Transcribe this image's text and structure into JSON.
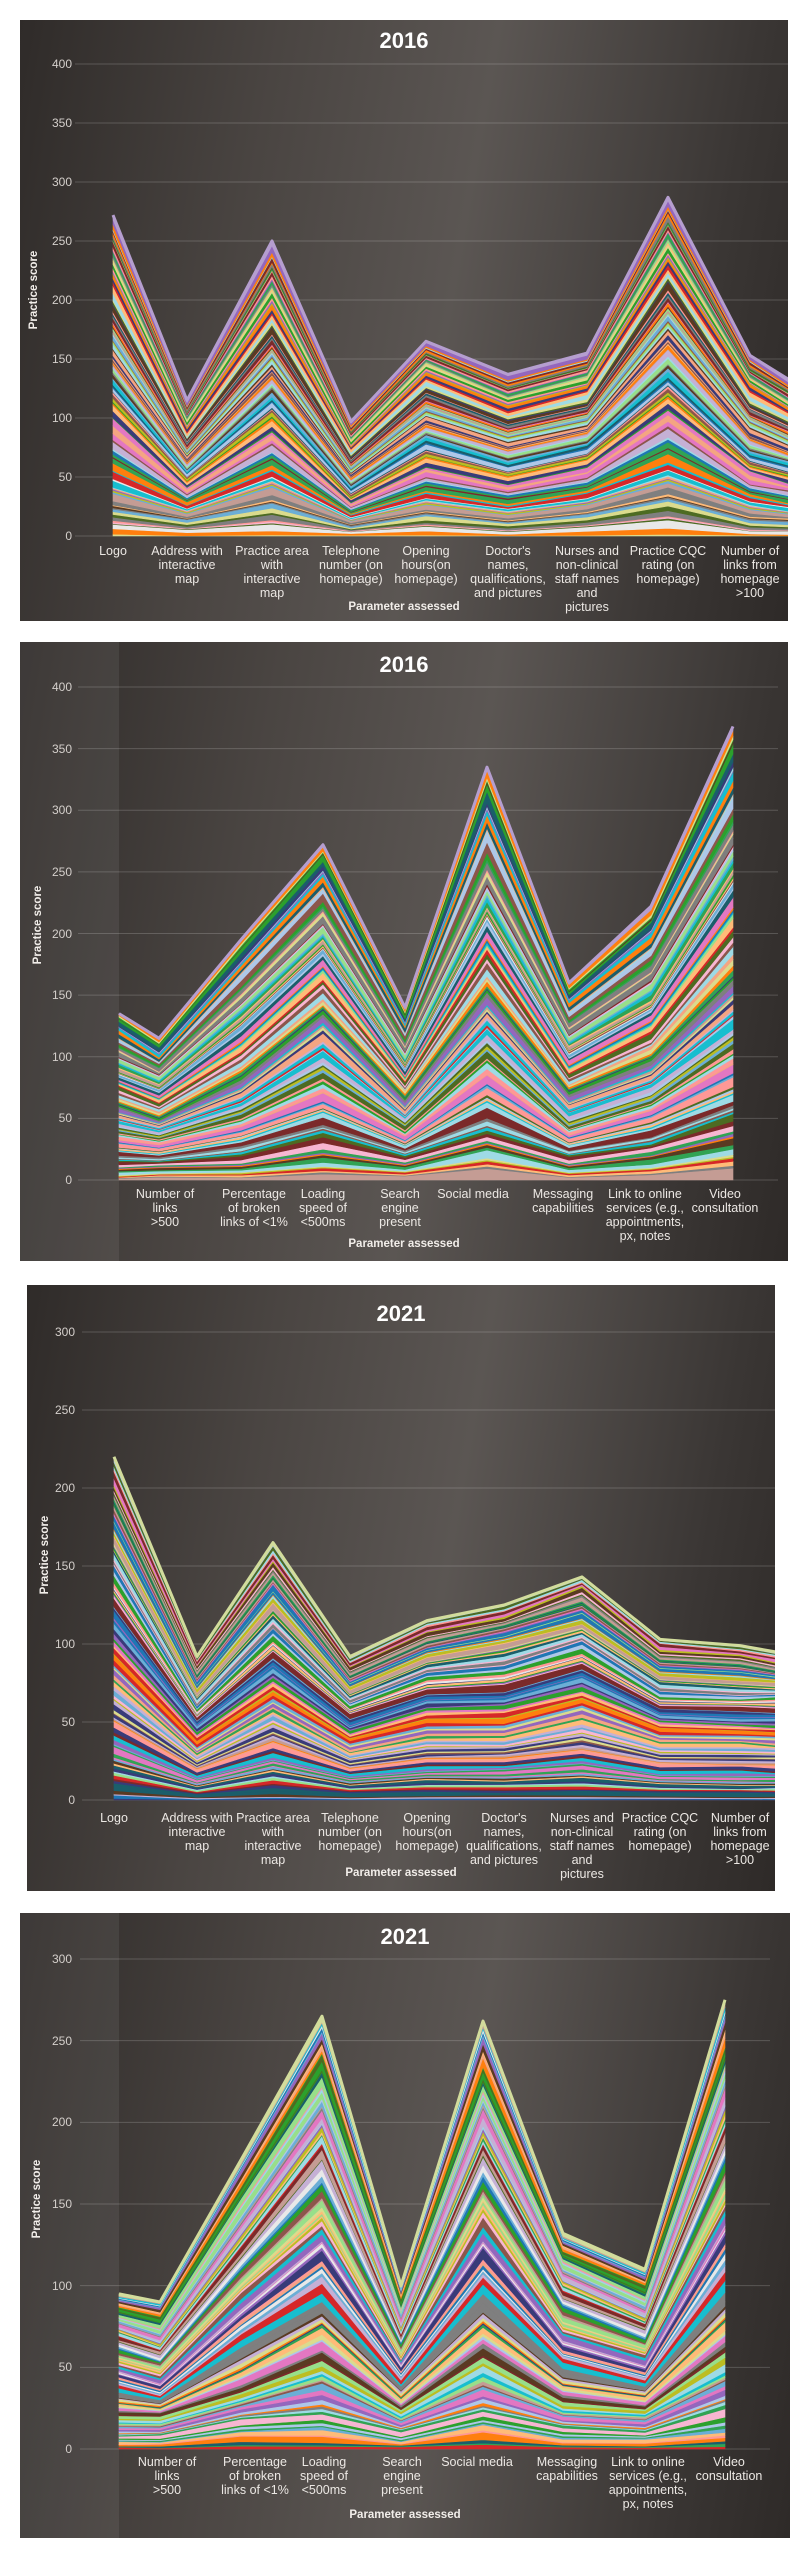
{
  "chart_data": [
    {
      "type": "area",
      "stacked": true,
      "title": "2016",
      "xlabel": "Parameter assessed",
      "ylabel": "Practice score",
      "ylim": [
        0,
        400
      ],
      "yticks": [
        "0",
        "50",
        "100",
        "150",
        "200",
        "250",
        "300",
        "350",
        "400"
      ],
      "grid": true,
      "categories": [
        "Logo",
        "Address with\ninteractive\nmap",
        "Practice area\nwith\ninteractive\nmap",
        "Telephone\nnumber (on\nhomepage)",
        "Opening\nhours(on\nhomepage)",
        "Doctor's\nnames,\nqualifications,\nand pictures",
        "Nurses and\nnon-clinical\nstaff names\nand\npictures",
        "Practice CQC\nrating (on\nhomepage)",
        "Number of\nlinks from\nhomepage\n>100"
      ],
      "stack_total": [
        272,
        115,
        250,
        97,
        165,
        137,
        155,
        287,
        153
      ],
      "stack_total_end": 133,
      "top_series_color": "#b59ecf"
    },
    {
      "type": "area",
      "stacked": true,
      "title": "2016",
      "xlabel": "Parameter assessed",
      "ylabel": "Practice score",
      "ylim": [
        0,
        400
      ],
      "yticks": [
        "0",
        "50",
        "100",
        "150",
        "200",
        "250",
        "300",
        "350",
        "400"
      ],
      "grid": true,
      "categories": [
        "Number of links\n>500",
        "Percentage\nof broken\nlinks of <1%",
        "Loading\nspeed of\n<500ms",
        "Search\nengine\npresent",
        "Social media",
        "Messaging\ncapabilities",
        "Link to online\nservices (e.g.,\nappointments,\npx, notes",
        "Video\nconsultation"
      ],
      "stack_total_start": 135,
      "stack_total": [
        115,
        195,
        272,
        140,
        335,
        160,
        222,
        368
      ],
      "top_series_color": "#b59ecf"
    },
    {
      "type": "area",
      "stacked": true,
      "title": "2021",
      "xlabel": "Parameter assessed",
      "ylabel": "Practice score",
      "ylim": [
        0,
        300
      ],
      "yticks": [
        "0",
        "50",
        "100",
        "150",
        "200",
        "250",
        "300"
      ],
      "grid": true,
      "categories": [
        "Logo",
        "Address with\ninteractive\nmap",
        "Practice area\nwith\ninteractive\nmap",
        "Telephone\nnumber (on\nhomepage)",
        "Opening\nhours(on\nhomepage)",
        "Doctor's\nnames,\nqualifications,\nand pictures",
        "Nurses and\nnon-clinical\nstaff names\nand\npictures",
        "Practice CQC\nrating (on\nhomepage)",
        "Number of\nlinks from\nhomepage\n>100"
      ],
      "stack_total": [
        220,
        92,
        165,
        92,
        115,
        125,
        143,
        103,
        99
      ],
      "stack_total_end": 95,
      "top_series_color": "#d2dc9c"
    },
    {
      "type": "area",
      "stacked": true,
      "title": "2021",
      "xlabel": "Parameter assessed",
      "ylabel": "Practice score",
      "ylim": [
        0,
        300
      ],
      "yticks": [
        "0",
        "50",
        "100",
        "150",
        "200",
        "250",
        "300"
      ],
      "grid": true,
      "categories": [
        "Number of links\n>500",
        "Percentage\nof broken\nlinks of <1%",
        "Loading\nspeed of\n<500ms",
        "Search\nengine\npresent",
        "Social media",
        "Messaging\ncapabilities",
        "Link to online\nservices (e.g.,\nappointments,\npx, notes",
        "Video\nconsultation"
      ],
      "stack_total_start": 95,
      "stack_total": [
        90,
        177,
        265,
        100,
        262,
        132,
        110,
        275
      ],
      "top_series_color": "#d2dc9c"
    }
  ],
  "series_palette": [
    "#1f77b4",
    "#ff7f0e",
    "#2ca02c",
    "#d62728",
    "#9467bd",
    "#8c564b",
    "#e377c2",
    "#7f7f7f",
    "#bcbd22",
    "#17becf",
    "#aec7e8",
    "#ffbb78",
    "#98df8a",
    "#ff9896",
    "#c5b0d5",
    "#c49c94",
    "#f7b6d2",
    "#dbdb8d",
    "#9edae5",
    "#393b79",
    "#5a3a22",
    "#1b5e6b",
    "#4d6b22",
    "#7b2a2a",
    "#e8e8e8",
    "#f4a582",
    "#6baed6",
    "#31a354"
  ]
}
